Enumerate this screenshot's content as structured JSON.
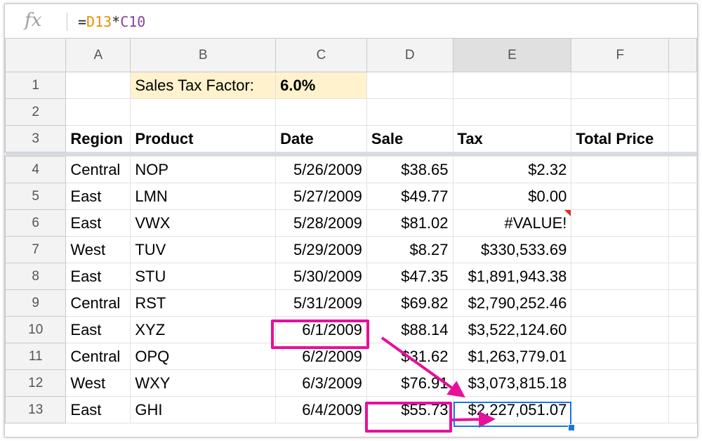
{
  "formula_bar": {
    "icon": "fx-icon",
    "fx_label": "fx",
    "formula_prefix": "=",
    "formula_ref1": "D13",
    "formula_op": "*",
    "formula_ref2": "C10"
  },
  "columns": [
    "A",
    "B",
    "C",
    "D",
    "E",
    "F"
  ],
  "row1": {
    "num": "1",
    "label": "Sales Tax Factor:",
    "value": "6.0%"
  },
  "row2": {
    "num": "2"
  },
  "row3": {
    "num": "3",
    "headers": [
      "Region",
      "Product",
      "Date",
      "Sale",
      "Tax",
      "Total Price"
    ]
  },
  "rows": [
    {
      "num": "4",
      "region": "Central",
      "product": "NOP",
      "date": "5/26/2009",
      "sale": "$38.65",
      "tax": "$2.32"
    },
    {
      "num": "5",
      "region": "East",
      "product": "LMN",
      "date": "5/27/2009",
      "sale": "$49.77",
      "tax": "$0.00"
    },
    {
      "num": "6",
      "region": "East",
      "product": "VWX",
      "date": "5/28/2009",
      "sale": "$81.02",
      "tax": "#VALUE!"
    },
    {
      "num": "7",
      "region": "West",
      "product": "TUV",
      "date": "5/29/2009",
      "sale": "$8.27",
      "tax": "$330,533.69"
    },
    {
      "num": "8",
      "region": "East",
      "product": "STU",
      "date": "5/30/2009",
      "sale": "$47.35",
      "tax": "$1,891,943.38"
    },
    {
      "num": "9",
      "region": "Central",
      "product": "RST",
      "date": "5/31/2009",
      "sale": "$69.82",
      "tax": "$2,790,252.46"
    },
    {
      "num": "10",
      "region": "East",
      "product": "XYZ",
      "date": "6/1/2009",
      "sale": "$88.14",
      "tax": "$3,522,124.60"
    },
    {
      "num": "11",
      "region": "Central",
      "product": "OPQ",
      "date": "6/2/2009",
      "sale": "$31.62",
      "tax": "$1,263,779.01"
    },
    {
      "num": "12",
      "region": "West",
      "product": "WXY",
      "date": "6/3/2009",
      "sale": "$76.91",
      "tax": "$3,073,815.18"
    },
    {
      "num": "13",
      "region": "East",
      "product": "GHI",
      "date": "6/4/2009",
      "sale": "$55.73",
      "tax": "$2,227,051.07"
    }
  ],
  "selected_cell": "E13",
  "colors": {
    "highlight": "#e6109b",
    "selection": "#1a73e8",
    "tax_factor_fill": "#fff2cc",
    "error_marker": "#d93025"
  }
}
